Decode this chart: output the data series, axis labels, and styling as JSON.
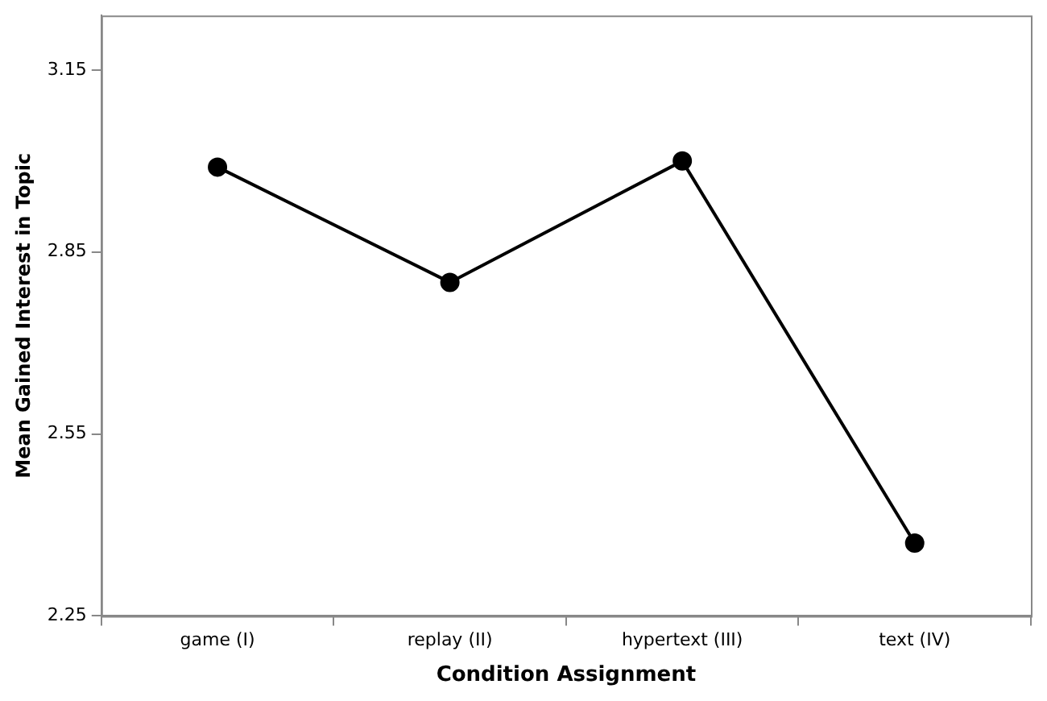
{
  "chart_data": {
    "type": "line",
    "xlabel": "Condition Assignment",
    "ylabel": "Mean Gained Interest in Topic",
    "categories": [
      "game (I)",
      "replay (II)",
      "hypertext (III)",
      "text (IV)"
    ],
    "series": [
      {
        "color": "#000000",
        "values": [
          2.99,
          2.8,
          3.0,
          2.37
        ]
      }
    ],
    "ylim": [
      2.25,
      3.24
    ],
    "yticks": [
      2.25,
      2.55,
      2.85,
      3.15
    ],
    "grid": false,
    "legend": false,
    "marker": "circle",
    "line_style": "solid"
  }
}
